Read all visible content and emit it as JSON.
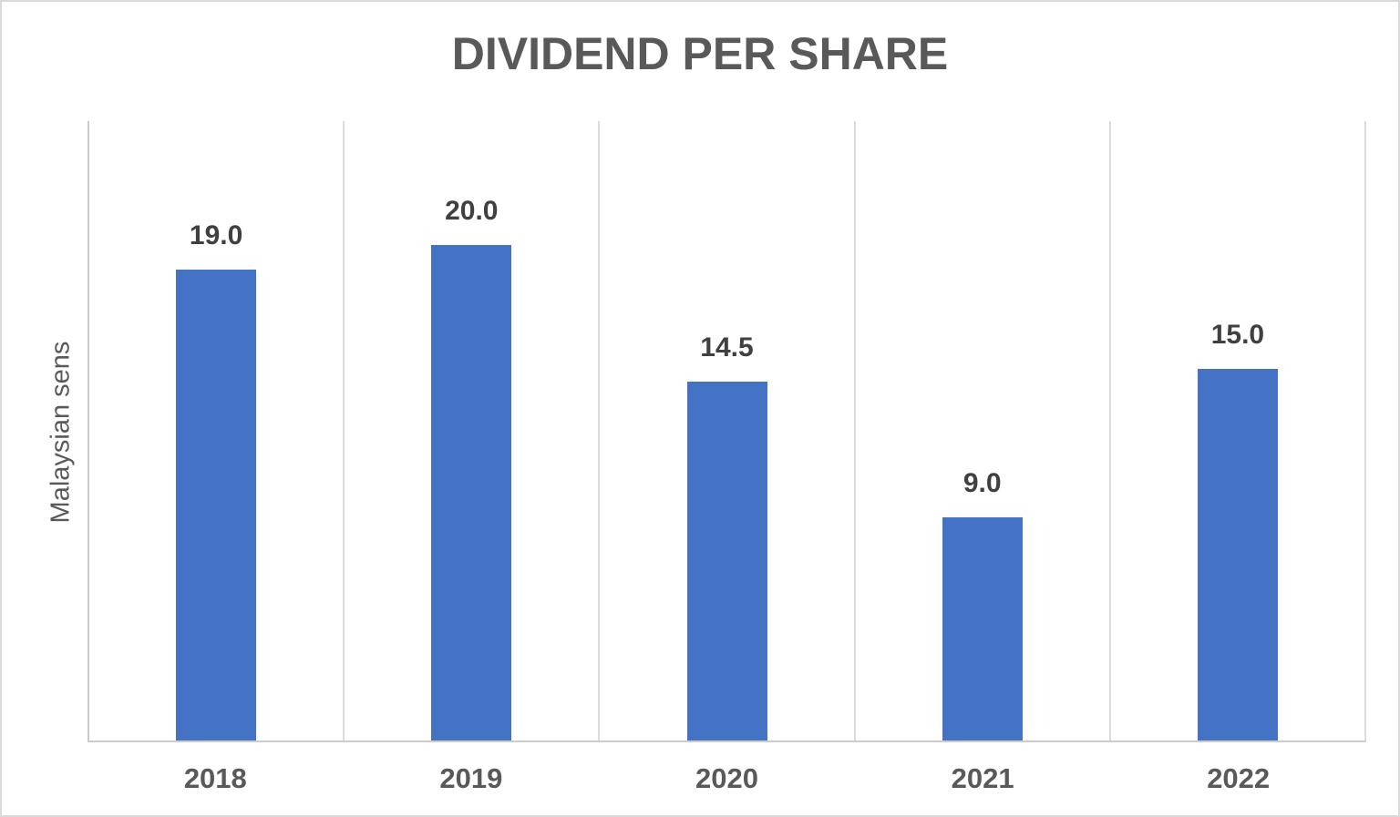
{
  "chart_data": {
    "type": "bar",
    "title": "DIVIDEND PER SHARE",
    "xlabel": "",
    "ylabel": "Malaysian sens",
    "categories": [
      "2018",
      "2019",
      "2020",
      "2021",
      "2022"
    ],
    "values": [
      19.0,
      20.0,
      14.5,
      9.0,
      15.0
    ],
    "value_labels": [
      "19.0",
      "20.0",
      "14.5",
      "9.0",
      "15.0"
    ],
    "ylim": [
      0,
      25
    ],
    "legend": "none",
    "grid": "vertical-category-boundaries-only",
    "colors": {
      "bar": "#4472C4",
      "title_text": "#595959",
      "axis_label_text": "#595959",
      "data_label_text": "#404040",
      "gridline": "#DBDBDB",
      "axis_line": "#CCCCCC",
      "chart_border": "#D9D9D9",
      "background": "#FFFFFF"
    }
  }
}
